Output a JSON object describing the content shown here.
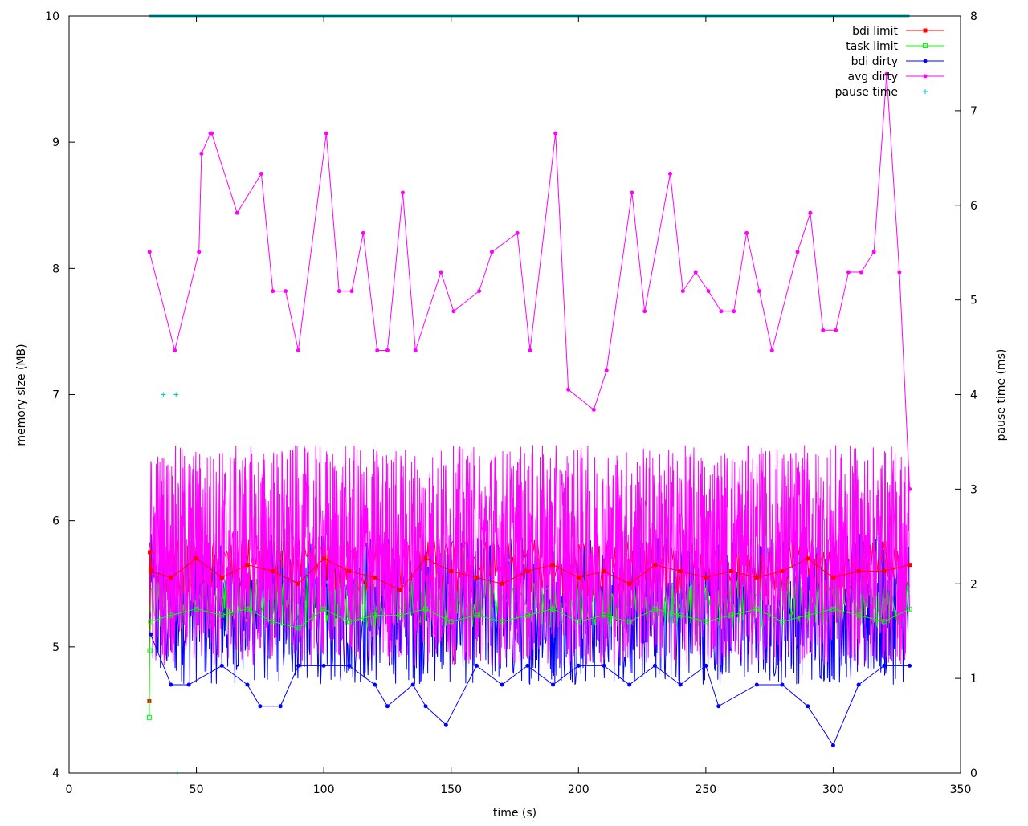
{
  "chart_data": {
    "type": "line",
    "title": "",
    "xlabel": "time (s)",
    "ylabel": "memory size (MB)",
    "y2label": "pause time (ms)",
    "xlim": [
      0,
      350
    ],
    "ylim": [
      4,
      10
    ],
    "y2lim": [
      0,
      8
    ],
    "xticks": [
      0,
      50,
      100,
      150,
      200,
      250,
      300,
      350
    ],
    "yticks": [
      4,
      5,
      6,
      7,
      8,
      9,
      10
    ],
    "y2ticks": [
      0,
      1,
      2,
      3,
      4,
      5,
      6,
      7,
      8
    ],
    "grid": false,
    "legend_position": "top-right",
    "series": [
      {
        "name": "bdi limit",
        "color": "#ff0000",
        "marker": "filled-square",
        "axis": "left",
        "x": [
          31.5,
          31.7,
          32,
          40,
          50,
          60,
          70,
          80,
          90,
          100,
          110,
          120,
          130,
          140,
          150,
          160,
          170,
          180,
          190,
          200,
          210,
          220,
          230,
          240,
          250,
          260,
          270,
          280,
          290,
          300,
          310,
          320,
          330
        ],
        "values": [
          4.57,
          5.75,
          5.6,
          5.55,
          5.7,
          5.55,
          5.65,
          5.6,
          5.5,
          5.7,
          5.6,
          5.55,
          5.45,
          5.7,
          5.6,
          5.55,
          5.5,
          5.6,
          5.65,
          5.55,
          5.6,
          5.5,
          5.65,
          5.6,
          5.55,
          5.6,
          5.55,
          5.6,
          5.7,
          5.55,
          5.6,
          5.6,
          5.65
        ]
      },
      {
        "name": "task limit",
        "color": "#00ff00",
        "marker": "open-square",
        "axis": "left",
        "x": [
          31.5,
          31.7,
          32,
          40,
          50,
          60,
          70,
          80,
          90,
          100,
          110,
          120,
          130,
          140,
          150,
          160,
          170,
          180,
          190,
          200,
          210,
          220,
          230,
          240,
          250,
          260,
          270,
          280,
          290,
          300,
          310,
          320,
          330
        ],
        "values": [
          4.44,
          4.97,
          5.2,
          5.25,
          5.3,
          5.25,
          5.3,
          5.2,
          5.15,
          5.3,
          5.2,
          5.25,
          5.25,
          5.3,
          5.2,
          5.25,
          5.2,
          5.25,
          5.3,
          5.2,
          5.25,
          5.2,
          5.3,
          5.25,
          5.2,
          5.25,
          5.3,
          5.2,
          5.25,
          5.3,
          5.25,
          5.2,
          5.3
        ]
      },
      {
        "name": "bdi dirty",
        "color": "#0000ff",
        "marker": "filled-circle",
        "axis": "left",
        "x": [
          32,
          40,
          47,
          60,
          70,
          75,
          83,
          90,
          100,
          110,
          120,
          125,
          135,
          140,
          148,
          160,
          170,
          180,
          190,
          200,
          210,
          220,
          230,
          240,
          250,
          255,
          270,
          280,
          290,
          300,
          310,
          320,
          330
        ],
        "values": [
          5.1,
          4.7,
          4.7,
          4.85,
          4.7,
          4.53,
          4.53,
          4.85,
          4.85,
          4.85,
          4.7,
          4.53,
          4.7,
          4.53,
          4.38,
          4.85,
          4.7,
          4.85,
          4.7,
          4.85,
          4.85,
          4.7,
          4.85,
          4.7,
          4.85,
          4.53,
          4.7,
          4.7,
          4.53,
          4.22,
          4.7,
          4.85,
          4.85
        ]
      },
      {
        "name": "avg dirty",
        "color": "#ff00ff",
        "marker": "filled-circle",
        "axis": "left",
        "x": [
          31.6,
          41.5,
          51,
          52,
          55.5,
          56,
          66,
          75.5,
          80,
          85,
          90,
          101,
          106,
          111,
          115.5,
          121,
          125,
          131,
          136,
          146,
          151,
          161,
          166,
          176,
          181,
          191,
          196,
          206,
          211,
          221,
          226,
          236,
          241,
          246,
          251,
          256,
          261,
          266,
          271,
          276,
          286,
          291,
          296,
          301,
          306,
          311,
          316,
          321,
          326,
          330
        ],
        "values": [
          8.13,
          7.35,
          8.13,
          8.91,
          9.07,
          9.07,
          8.44,
          8.75,
          7.82,
          7.82,
          7.35,
          9.07,
          7.82,
          7.82,
          8.28,
          7.35,
          7.35,
          8.6,
          7.35,
          7.97,
          7.66,
          7.82,
          8.13,
          8.28,
          7.35,
          9.07,
          7.04,
          6.88,
          7.19,
          8.6,
          7.66,
          8.75,
          7.82,
          7.97,
          7.82,
          7.66,
          7.66,
          8.28,
          7.82,
          7.35,
          8.13,
          8.44,
          7.51,
          7.51,
          7.97,
          7.97,
          8.13,
          9.54,
          7.97,
          6.25
        ]
      },
      {
        "name": "pause time",
        "color": "#00c8c8",
        "marker": "plus",
        "axis": "right",
        "x": [
          37,
          42,
          42.5
        ],
        "values": [
          4,
          4,
          0
        ]
      }
    ],
    "annotations": [
      {
        "type": "horizontal-line",
        "color": "#00c8c8",
        "axis": "right",
        "y": 8,
        "x_start": 31.5,
        "x_end": 330
      }
    ]
  }
}
